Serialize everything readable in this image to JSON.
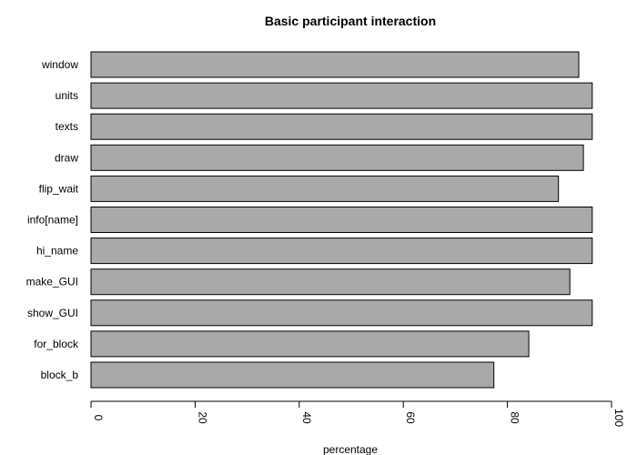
{
  "chart_data": {
    "type": "bar",
    "orientation": "horizontal",
    "title": "Basic participant interaction",
    "xlabel": "percentage",
    "ylabel": "",
    "xlim": [
      0,
      100
    ],
    "xticks": [
      "0",
      "20",
      "40",
      "60",
      "80",
      "100"
    ],
    "categories": [
      "window",
      "units",
      "texts",
      "draw",
      "flip_wait",
      "info[name]",
      "hi_name",
      "make_GUI",
      "show_GUI",
      "for_block",
      "block_b"
    ],
    "values": [
      93.7,
      96.3,
      96.3,
      94.6,
      89.8,
      96.3,
      96.3,
      92.0,
      96.3,
      84.1,
      77.4
    ],
    "bar_color": "#A9A9A9",
    "bar_outline": "#000000",
    "grid": false,
    "legend": "none"
  }
}
